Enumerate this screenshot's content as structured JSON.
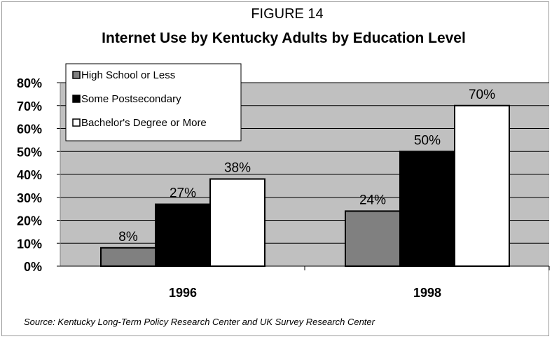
{
  "figure_label": "FIGURE 14",
  "source_note": "Source: Kentucky Long-Term Policy Research Center and UK Survey Research Center",
  "colors": {
    "plot_background": "#c0c0c0",
    "gridline": "#000000",
    "series": [
      "#808080",
      "#000000",
      "#ffffff"
    ]
  },
  "chart_data": {
    "type": "bar",
    "title": "Internet Use by Kentucky Adults by Education Level",
    "xlabel": "",
    "ylabel": "",
    "categories": [
      "1996",
      "1998"
    ],
    "series": [
      {
        "name": "High School or Less",
        "values": [
          8,
          24
        ],
        "labels": [
          "8%",
          "24%"
        ]
      },
      {
        "name": "Some Postsecondary",
        "values": [
          27,
          50
        ],
        "labels": [
          "27%",
          "50%"
        ]
      },
      {
        "name": "Bachelor's Degree or More",
        "values": [
          38,
          70
        ],
        "labels": [
          "38%",
          "70%"
        ]
      }
    ],
    "ylim": [
      0,
      80
    ],
    "yticks": [
      0,
      10,
      20,
      30,
      40,
      50,
      60,
      70,
      80
    ],
    "ytick_labels": [
      "0%",
      "10%",
      "20%",
      "30%",
      "40%",
      "50%",
      "60%",
      "70%",
      "80%"
    ],
    "grid": true,
    "legend_position": "top-left"
  }
}
